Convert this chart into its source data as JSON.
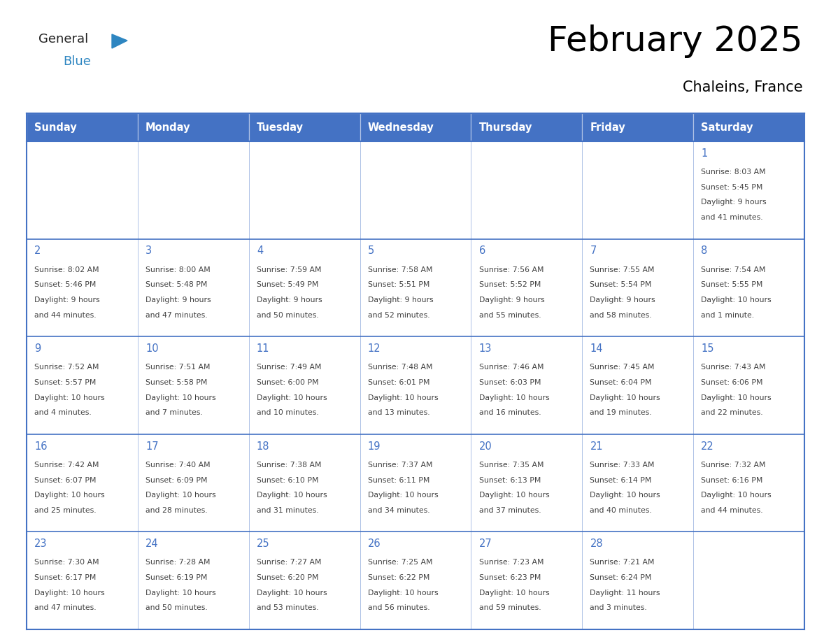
{
  "title": "February 2025",
  "subtitle": "Chaleins, France",
  "title_fontsize": 36,
  "subtitle_fontsize": 15,
  "header_color": "#4472C4",
  "header_text_color": "#FFFFFF",
  "cell_bg_color": "#FFFFFF",
  "border_color": "#4472C4",
  "day_num_color": "#4472C4",
  "text_color": "#404040",
  "days_of_week": [
    "Sunday",
    "Monday",
    "Tuesday",
    "Wednesday",
    "Thursday",
    "Friday",
    "Saturday"
  ],
  "logo_color1": "#222222",
  "logo_color2": "#2E86C1",
  "logo_triangle_color": "#2E86C1",
  "weeks": [
    [
      {
        "day": "",
        "sunrise": "",
        "sunset": "",
        "daylight": ""
      },
      {
        "day": "",
        "sunrise": "",
        "sunset": "",
        "daylight": ""
      },
      {
        "day": "",
        "sunrise": "",
        "sunset": "",
        "daylight": ""
      },
      {
        "day": "",
        "sunrise": "",
        "sunset": "",
        "daylight": ""
      },
      {
        "day": "",
        "sunrise": "",
        "sunset": "",
        "daylight": ""
      },
      {
        "day": "",
        "sunrise": "",
        "sunset": "",
        "daylight": ""
      },
      {
        "day": "1",
        "sunrise": "8:03 AM",
        "sunset": "5:45 PM",
        "daylight": "9 hours\nand 41 minutes."
      }
    ],
    [
      {
        "day": "2",
        "sunrise": "8:02 AM",
        "sunset": "5:46 PM",
        "daylight": "9 hours\nand 44 minutes."
      },
      {
        "day": "3",
        "sunrise": "8:00 AM",
        "sunset": "5:48 PM",
        "daylight": "9 hours\nand 47 minutes."
      },
      {
        "day": "4",
        "sunrise": "7:59 AM",
        "sunset": "5:49 PM",
        "daylight": "9 hours\nand 50 minutes."
      },
      {
        "day": "5",
        "sunrise": "7:58 AM",
        "sunset": "5:51 PM",
        "daylight": "9 hours\nand 52 minutes."
      },
      {
        "day": "6",
        "sunrise": "7:56 AM",
        "sunset": "5:52 PM",
        "daylight": "9 hours\nand 55 minutes."
      },
      {
        "day": "7",
        "sunrise": "7:55 AM",
        "sunset": "5:54 PM",
        "daylight": "9 hours\nand 58 minutes."
      },
      {
        "day": "8",
        "sunrise": "7:54 AM",
        "sunset": "5:55 PM",
        "daylight": "10 hours\nand 1 minute."
      }
    ],
    [
      {
        "day": "9",
        "sunrise": "7:52 AM",
        "sunset": "5:57 PM",
        "daylight": "10 hours\nand 4 minutes."
      },
      {
        "day": "10",
        "sunrise": "7:51 AM",
        "sunset": "5:58 PM",
        "daylight": "10 hours\nand 7 minutes."
      },
      {
        "day": "11",
        "sunrise": "7:49 AM",
        "sunset": "6:00 PM",
        "daylight": "10 hours\nand 10 minutes."
      },
      {
        "day": "12",
        "sunrise": "7:48 AM",
        "sunset": "6:01 PM",
        "daylight": "10 hours\nand 13 minutes."
      },
      {
        "day": "13",
        "sunrise": "7:46 AM",
        "sunset": "6:03 PM",
        "daylight": "10 hours\nand 16 minutes."
      },
      {
        "day": "14",
        "sunrise": "7:45 AM",
        "sunset": "6:04 PM",
        "daylight": "10 hours\nand 19 minutes."
      },
      {
        "day": "15",
        "sunrise": "7:43 AM",
        "sunset": "6:06 PM",
        "daylight": "10 hours\nand 22 minutes."
      }
    ],
    [
      {
        "day": "16",
        "sunrise": "7:42 AM",
        "sunset": "6:07 PM",
        "daylight": "10 hours\nand 25 minutes."
      },
      {
        "day": "17",
        "sunrise": "7:40 AM",
        "sunset": "6:09 PM",
        "daylight": "10 hours\nand 28 minutes."
      },
      {
        "day": "18",
        "sunrise": "7:38 AM",
        "sunset": "6:10 PM",
        "daylight": "10 hours\nand 31 minutes."
      },
      {
        "day": "19",
        "sunrise": "7:37 AM",
        "sunset": "6:11 PM",
        "daylight": "10 hours\nand 34 minutes."
      },
      {
        "day": "20",
        "sunrise": "7:35 AM",
        "sunset": "6:13 PM",
        "daylight": "10 hours\nand 37 minutes."
      },
      {
        "day": "21",
        "sunrise": "7:33 AM",
        "sunset": "6:14 PM",
        "daylight": "10 hours\nand 40 minutes."
      },
      {
        "day": "22",
        "sunrise": "7:32 AM",
        "sunset": "6:16 PM",
        "daylight": "10 hours\nand 44 minutes."
      }
    ],
    [
      {
        "day": "23",
        "sunrise": "7:30 AM",
        "sunset": "6:17 PM",
        "daylight": "10 hours\nand 47 minutes."
      },
      {
        "day": "24",
        "sunrise": "7:28 AM",
        "sunset": "6:19 PM",
        "daylight": "10 hours\nand 50 minutes."
      },
      {
        "day": "25",
        "sunrise": "7:27 AM",
        "sunset": "6:20 PM",
        "daylight": "10 hours\nand 53 minutes."
      },
      {
        "day": "26",
        "sunrise": "7:25 AM",
        "sunset": "6:22 PM",
        "daylight": "10 hours\nand 56 minutes."
      },
      {
        "day": "27",
        "sunrise": "7:23 AM",
        "sunset": "6:23 PM",
        "daylight": "10 hours\nand 59 minutes."
      },
      {
        "day": "28",
        "sunrise": "7:21 AM",
        "sunset": "6:24 PM",
        "daylight": "11 hours\nand 3 minutes."
      },
      {
        "day": "",
        "sunrise": "",
        "sunset": "",
        "daylight": ""
      }
    ]
  ]
}
